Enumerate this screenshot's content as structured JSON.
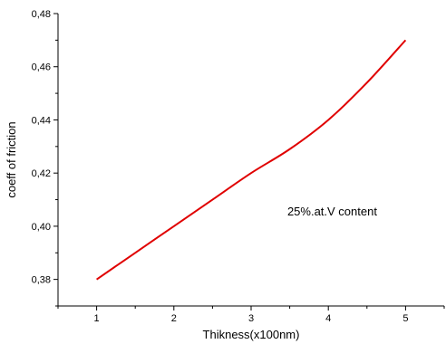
{
  "chart_data": {
    "type": "line",
    "title": "",
    "xlabel": "Thikness(x100nm)",
    "ylabel": "coeff of friction",
    "xlim": [
      0.5,
      5.5
    ],
    "ylim": [
      0.37,
      0.48
    ],
    "x_ticks": [
      1,
      2,
      3,
      4,
      5
    ],
    "x_tick_labels": [
      "1",
      "2",
      "3",
      "4",
      "5"
    ],
    "y_ticks": [
      0.38,
      0.4,
      0.42,
      0.44,
      0.46,
      0.48
    ],
    "y_tick_labels": [
      "0,38",
      "0,40",
      "0,42",
      "0,44",
      "0,46",
      "0,48"
    ],
    "grid": false,
    "legend": "none",
    "series": [
      {
        "color": "#e00000",
        "x": [
          1,
          1.5,
          2,
          2.5,
          3,
          3.5,
          4,
          4.5,
          5
        ],
        "y": [
          0.38,
          0.39,
          0.4,
          0.41,
          0.42,
          0.429,
          0.44,
          0.454,
          0.47
        ]
      }
    ],
    "annotations": [
      {
        "text": "25%.at.V content",
        "x": 4.05,
        "y": 0.404
      }
    ]
  }
}
